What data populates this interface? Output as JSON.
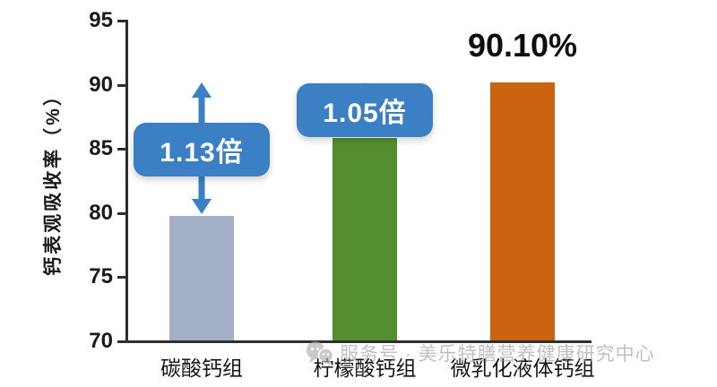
{
  "chart_data": {
    "type": "bar",
    "title": "",
    "ylabel": "钙表观吸收率（%）",
    "xlabel": "",
    "ylim": [
      70,
      95
    ],
    "yticks": [
      70,
      75,
      80,
      85,
      90,
      95
    ],
    "categories": [
      "碳酸钙组",
      "柠檬酸钙组",
      "微乳化液体钙组"
    ],
    "values": [
      79.7,
      85.8,
      90.1
    ],
    "bar_colors": [
      "#a2afc4",
      "#538f2e",
      "#c96310"
    ],
    "grid": false,
    "legend": "none",
    "axis_color": "#2e2e2e",
    "accent_blue": "#3b80c4",
    "annotations": [
      {
        "style": "badge-arrow",
        "label": "1.13倍",
        "bar_index": 0,
        "arrow_top_value": 90.1
      },
      {
        "style": "badge-arrow",
        "label": "1.05倍",
        "bar_index": 1,
        "arrow_top_value": 90.1
      },
      {
        "style": "value-label",
        "label": "90.10%",
        "bar_index": 2
      }
    ]
  },
  "watermark": {
    "icon": "wechat-chat-bubbles-icon",
    "text": "服务号 · 美乐特膳营养健康研究中心"
  }
}
